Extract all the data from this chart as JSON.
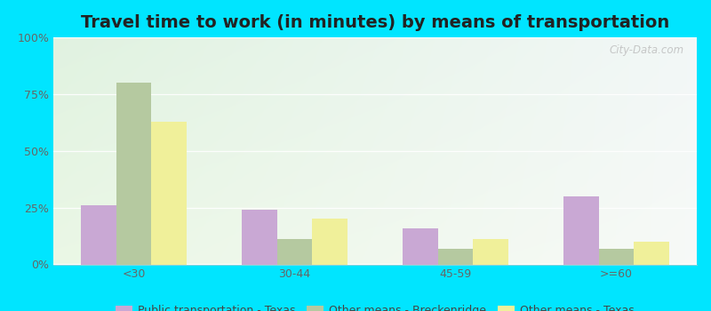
{
  "title": "Travel time to work (in minutes) by means of transportation",
  "categories": [
    "<30",
    "30-44",
    "45-59",
    ">=60"
  ],
  "series": {
    "Public transportation - Texas": [
      26,
      24,
      16,
      30
    ],
    "Other means - Breckenridge": [
      80,
      11,
      7,
      7
    ],
    "Other means - Texas": [
      63,
      20,
      11,
      10
    ]
  },
  "colors": {
    "Public transportation - Texas": "#c9a8d4",
    "Other means - Breckenridge": "#b5c9a0",
    "Other means - Texas": "#f0f09a"
  },
  "outer_background": "#00e5ff",
  "ylim": [
    0,
    100
  ],
  "yticks": [
    0,
    25,
    50,
    75,
    100
  ],
  "ytick_labels": [
    "0%",
    "25%",
    "50%",
    "75%",
    "100%"
  ],
  "title_fontsize": 14,
  "legend_fontsize": 9,
  "tick_fontsize": 9,
  "bar_width": 0.22,
  "watermark": "City-Data.com",
  "grid_color": "#d0e0d0"
}
